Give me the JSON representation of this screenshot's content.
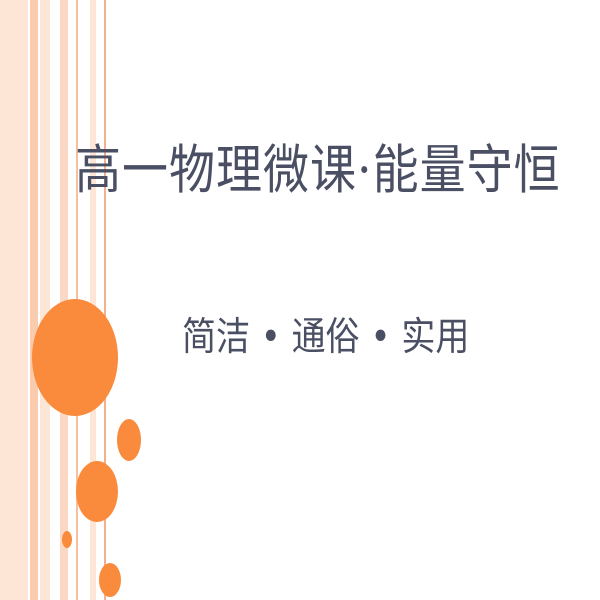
{
  "slide": {
    "title": "高一物理微课·能量守恒",
    "subtitle": "简洁 • 通俗 • 实用"
  },
  "colors": {
    "accent": "#fa8a3c",
    "stripe_light": "#fde6d6",
    "stripe_mid": "#f9ccb0",
    "text": "#4a4f63"
  }
}
